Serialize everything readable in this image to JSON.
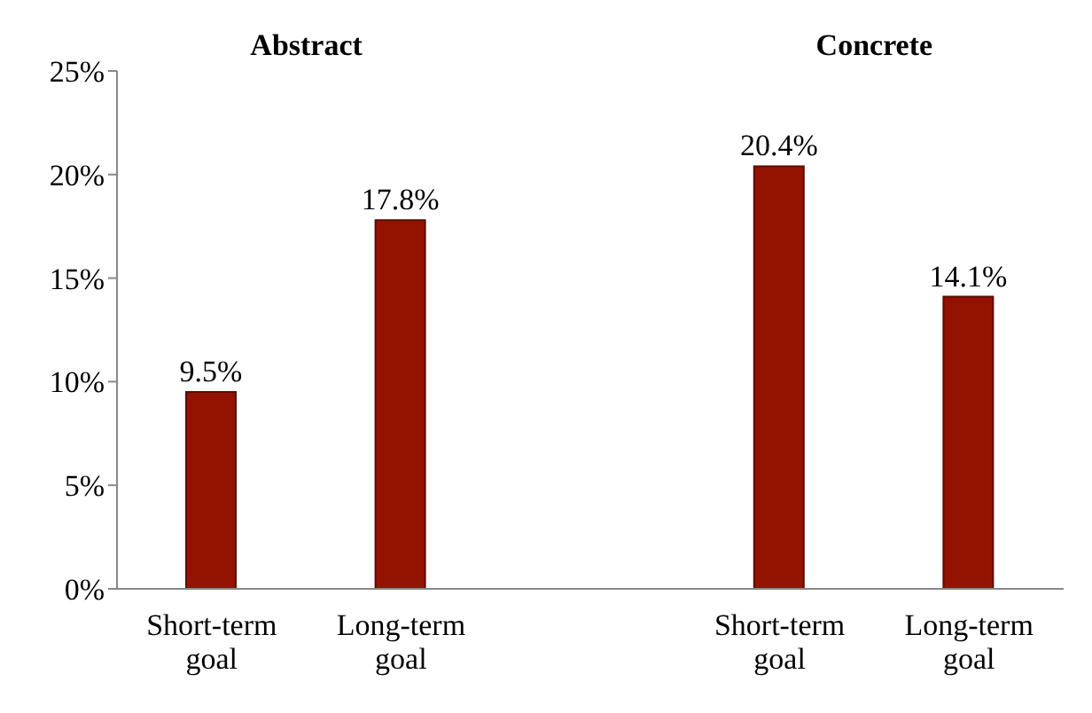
{
  "chart_data": {
    "type": "bar",
    "categories": [
      "Short-term goal",
      "Long-term goal",
      null,
      "Short-term goal",
      "Long-term goal"
    ],
    "values": [
      9.5,
      17.8,
      null,
      20.4,
      14.1
    ],
    "value_labels": [
      "9.5%",
      "17.8%",
      null,
      "20.4%",
      "14.1%"
    ],
    "color": "#931300",
    "ylim": [
      0,
      25
    ],
    "yticks": [
      {
        "value": 0,
        "label": "0%"
      },
      {
        "value": 5,
        "label": "5%"
      },
      {
        "value": 10,
        "label": "10%"
      },
      {
        "value": 15,
        "label": "15%"
      },
      {
        "value": 20,
        "label": "20%"
      },
      {
        "value": 25,
        "label": "25%"
      }
    ],
    "annotations": [
      "Abstract",
      "Concrete"
    ],
    "grid": false,
    "legend": false
  }
}
